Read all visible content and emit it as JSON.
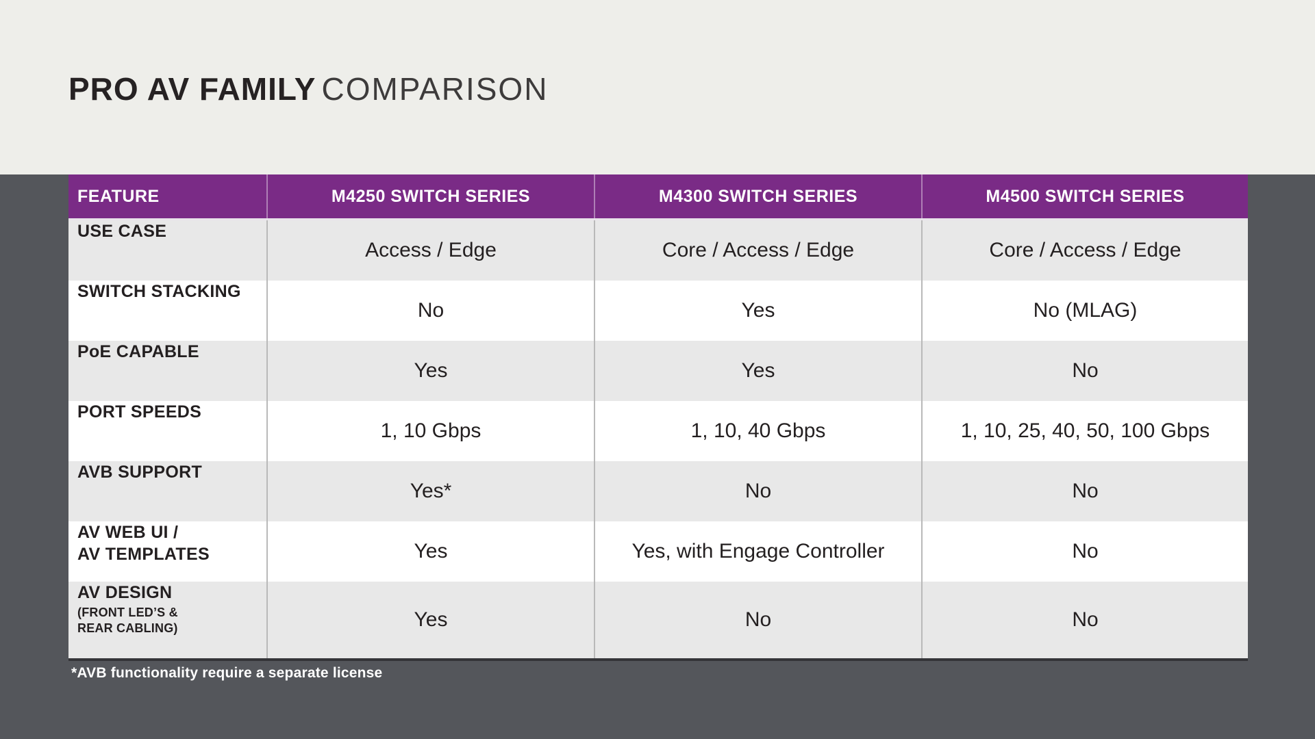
{
  "header": {
    "title_primary": "PRO AV FAMILY",
    "title_secondary": "COMPARISON"
  },
  "colors": {
    "purple": "#7a2b86",
    "dark_bg": "#54565b",
    "light_band": "#eeeeea",
    "row_gray": "#e8e8e8",
    "row_white": "#ffffff",
    "header_text": "#ffffff",
    "ink": "#231f20"
  },
  "table": {
    "columns": [
      "FEATURE",
      "M4250 SWITCH SERIES",
      "M4300 SWITCH SERIES",
      "M4500 SWITCH SERIES"
    ],
    "rows": [
      {
        "feature": "USE CASE",
        "sub": "",
        "values": [
          "Access / Edge",
          "Core / Access / Edge",
          "Core / Access / Edge"
        ]
      },
      {
        "feature": "SWITCH STACKING",
        "sub": "",
        "values": [
          "No",
          "Yes",
          "No (MLAG)"
        ]
      },
      {
        "feature": "PoE CAPABLE",
        "sub": "",
        "values": [
          "Yes",
          "Yes",
          "No"
        ]
      },
      {
        "feature": "PORT SPEEDS",
        "sub": "",
        "values": [
          "1, 10 Gbps",
          "1, 10, 40 Gbps",
          "1, 10, 25, 40, 50, 100 Gbps"
        ]
      },
      {
        "feature": "AVB SUPPORT",
        "sub": "",
        "values": [
          "Yes*",
          "No",
          "No"
        ]
      },
      {
        "feature": "AV WEB UI /\nAV TEMPLATES",
        "sub": "",
        "values": [
          "Yes",
          "Yes, with Engage Controller",
          "No"
        ]
      },
      {
        "feature": "AV DESIGN",
        "sub": "(FRONT LED’S &\nREAR CABLING)",
        "values": [
          "Yes",
          "No",
          "No"
        ]
      }
    ]
  },
  "footnote": {
    "text": "*AVB functionality require a separate license"
  }
}
